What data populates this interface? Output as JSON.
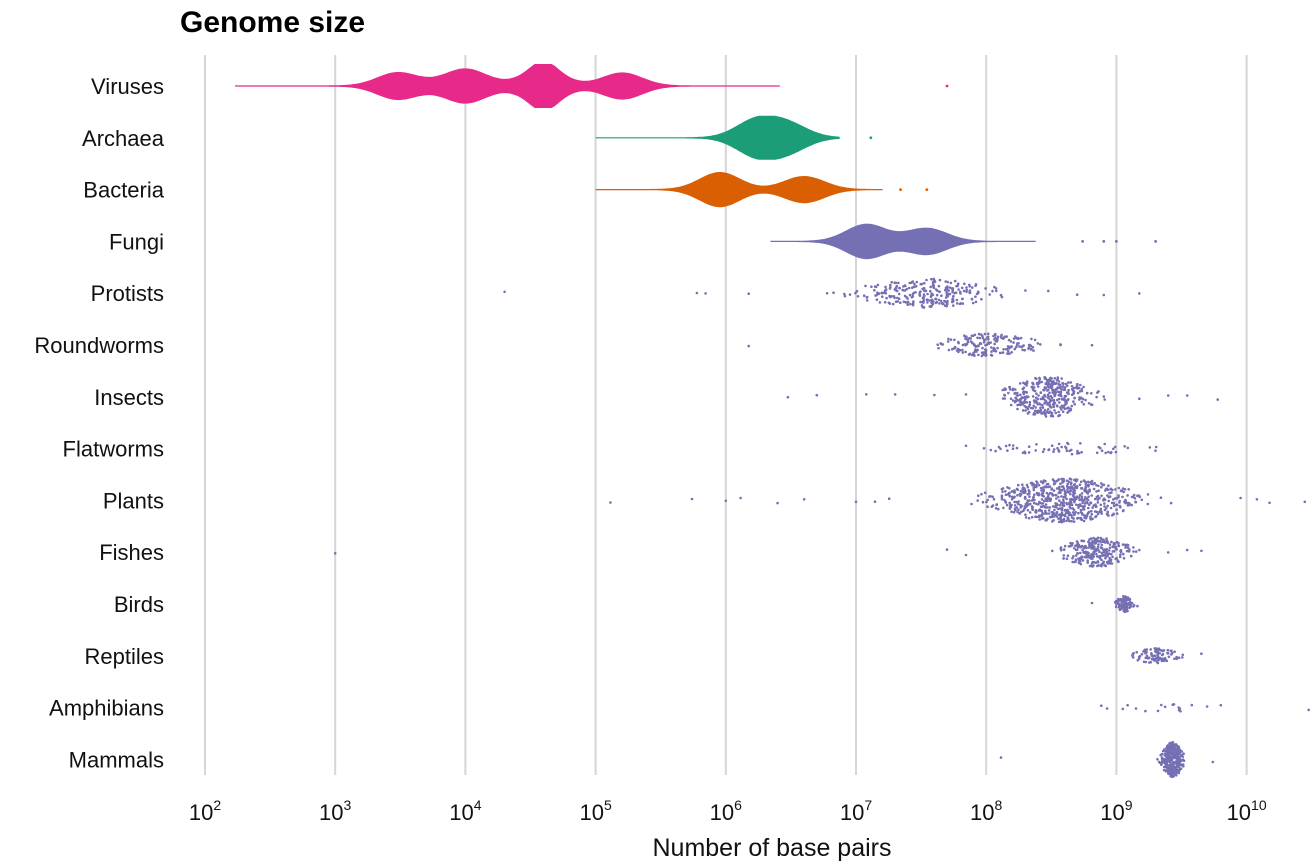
{
  "chart_data": {
    "type": "beeswarm-violin",
    "title": "Genome size",
    "xlabel": "Number of base pairs",
    "ylabel": "",
    "x_scale": "log10",
    "xlim": [
      100,
      30000000000
    ],
    "x_ticks": [
      {
        "base": "10",
        "exp": "2",
        "value": 100
      },
      {
        "base": "10",
        "exp": "3",
        "value": 1000
      },
      {
        "base": "10",
        "exp": "4",
        "value": 10000
      },
      {
        "base": "10",
        "exp": "5",
        "value": 100000
      },
      {
        "base": "10",
        "exp": "6",
        "value": 1000000
      },
      {
        "base": "10",
        "exp": "7",
        "value": 10000000
      },
      {
        "base": "10",
        "exp": "8",
        "value": 100000000
      },
      {
        "base": "10",
        "exp": "9",
        "value": 1000000000
      },
      {
        "base": "10",
        "exp": "10",
        "value": 10000000000
      }
    ],
    "grid": "vertical",
    "legend": "none",
    "colors": {
      "Viruses": "#e7298a",
      "Archaea": "#1b9e77",
      "Bacteria": "#d95f02",
      "Eukaryotes": "#7570b3",
      "gridline": "#d6d6d6"
    },
    "series": [
      {
        "name": "Viruses",
        "style": "violin",
        "color": "#e7298a",
        "range": [
          170,
          2600000
        ],
        "peaks": [
          3000,
          10000,
          40000,
          160000
        ],
        "outliers": [
          50000000
        ]
      },
      {
        "name": "Archaea",
        "style": "violin",
        "color": "#1b9e77",
        "range": [
          100000,
          7500000
        ],
        "peaks": [
          1700000,
          3000000
        ],
        "outliers": [
          13000000
        ]
      },
      {
        "name": "Bacteria",
        "style": "violin",
        "color": "#d95f02",
        "range": [
          100000,
          16000000
        ],
        "peaks": [
          900000,
          4000000
        ],
        "outliers": [
          22000000,
          35000000
        ]
      },
      {
        "name": "Fungi",
        "style": "violin",
        "color": "#7570b3",
        "range": [
          2200000,
          240000000
        ],
        "peaks": [
          12000000,
          35000000
        ],
        "outliers": [
          550000000,
          800000000,
          1000000000,
          2000000000
        ]
      },
      {
        "name": "Protists",
        "style": "dots",
        "color": "#7570b3",
        "center": 35000000,
        "spread": 0.35,
        "count": 260,
        "outliers": [
          20000,
          600000,
          700000,
          1500000,
          6000000,
          9000000,
          130000000,
          200000000,
          300000000,
          500000000,
          800000000,
          1500000000
        ]
      },
      {
        "name": "Roundworms",
        "style": "dots",
        "color": "#7570b3",
        "center": 100000000,
        "spread": 0.28,
        "count": 180,
        "outliers": [
          1500000,
          650000000
        ]
      },
      {
        "name": "Insects",
        "style": "dots",
        "color": "#7570b3",
        "center": 300000000,
        "spread": 0.22,
        "count": 380,
        "outliers": [
          3000000,
          5000000,
          12000000,
          20000000,
          40000000,
          70000000,
          1500000000,
          2500000000,
          3500000000,
          6000000000
        ]
      },
      {
        "name": "Flatworms",
        "style": "dots",
        "color": "#7570b3",
        "center": 400000000,
        "spread": 0.45,
        "count": 60,
        "outliers": [
          70000000
        ]
      },
      {
        "name": "Plants",
        "style": "dots",
        "color": "#7570b3",
        "center": 400000000,
        "spread": 0.38,
        "count": 650,
        "outliers": [
          130000,
          550000,
          1000000,
          1300000,
          2500000,
          4000000,
          10000000,
          14000000,
          18000000,
          9000000000,
          12000000000,
          15000000000,
          28000000000
        ]
      },
      {
        "name": "Fishes",
        "style": "dots",
        "color": "#7570b3",
        "center": 700000000,
        "spread": 0.18,
        "count": 260,
        "outliers": [
          1000,
          50000000,
          70000000,
          1500000000,
          2500000000,
          3500000000,
          4500000000
        ]
      },
      {
        "name": "Birds",
        "style": "dots",
        "color": "#7570b3",
        "center": 1150000000,
        "spread": 0.04,
        "count": 110,
        "outliers": [
          650000000,
          1450000000
        ]
      },
      {
        "name": "Reptiles",
        "style": "dots",
        "color": "#7570b3",
        "center": 2000000000,
        "spread": 0.12,
        "count": 100,
        "outliers": [
          4500000000
        ]
      },
      {
        "name": "Amphibians",
        "style": "dots",
        "color": "#7570b3",
        "center": 2500000000,
        "spread": 0.4,
        "count": 18,
        "outliers": [
          30000000000
        ]
      },
      {
        "name": "Mammals",
        "style": "dots",
        "color": "#7570b3",
        "center": 2700000000,
        "spread": 0.06,
        "count": 320,
        "outliers": [
          130000000,
          5500000000
        ]
      }
    ]
  }
}
